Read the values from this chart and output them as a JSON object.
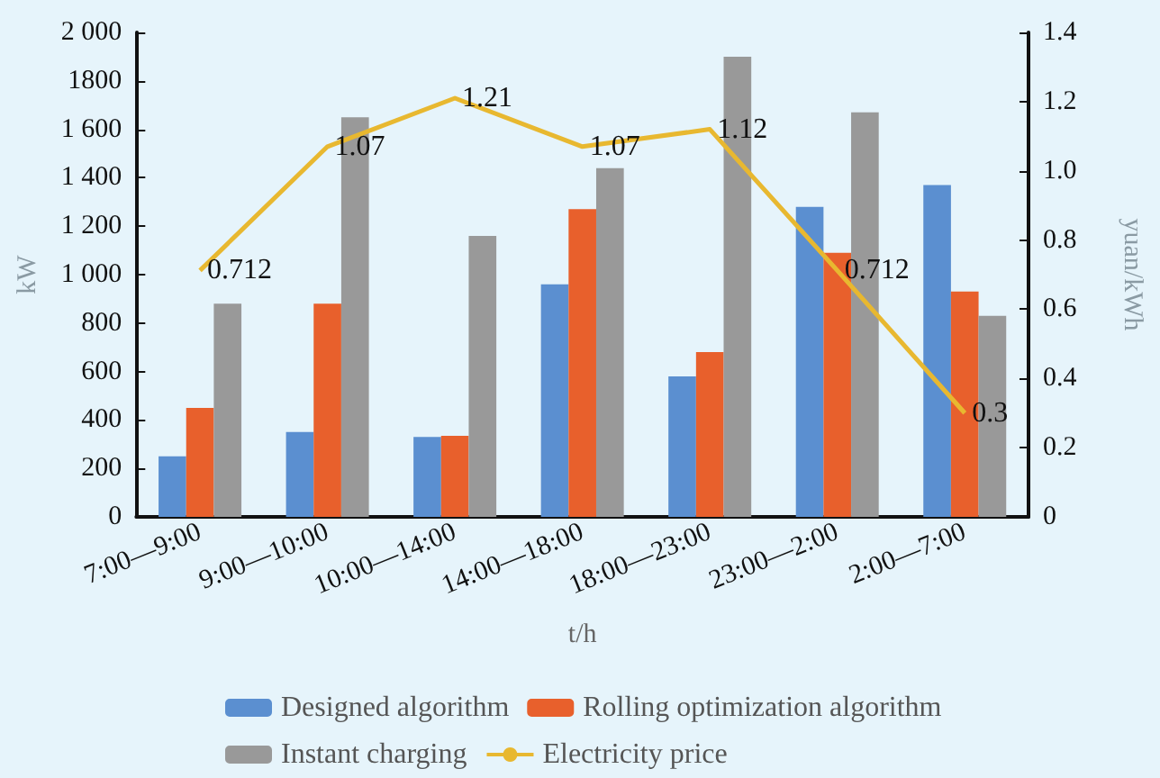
{
  "chart_data": {
    "type": "bar",
    "categories": [
      "7:00—9:00",
      "9:00—10:00",
      "10:00—14:00",
      "14:00—18:00",
      "18:00—23:00",
      "23:00—2:00",
      "2:00—7:00"
    ],
    "xlabel": "t/h",
    "ylabel": "kW",
    "y2label": "yuan/kWh",
    "series": [
      {
        "name": "Designed algorithm",
        "color": "#5b8fd0",
        "values": [
          250,
          350,
          330,
          960,
          580,
          1280,
          1370
        ]
      },
      {
        "name": "Rolling optimization algorithm",
        "color": "#e8602c",
        "values": [
          450,
          880,
          335,
          1270,
          680,
          1090,
          930
        ]
      },
      {
        "name": "Instant charging",
        "color": "#999999",
        "values": [
          880,
          1650,
          1160,
          1440,
          1900,
          1670,
          830
        ]
      },
      {
        "name": "Electricity price",
        "type": "line",
        "axis": "y2",
        "color": "#e8b830",
        "values": [
          0.712,
          1.07,
          1.21,
          1.07,
          1.12,
          0.712,
          0.3
        ],
        "data_labels": true
      }
    ],
    "ylim": [
      0,
      2000
    ],
    "yticks": [
      0,
      200,
      400,
      600,
      800,
      {
        "value": 1000,
        "label": "1 000"
      },
      {
        "value": 1200,
        "label": "1 200"
      },
      {
        "value": 1400,
        "label": "1 400"
      },
      {
        "value": 1600,
        "label": "1 600"
      },
      1800,
      {
        "value": 2000,
        "label": "2 000"
      }
    ],
    "y2lim": [
      0,
      1.4
    ],
    "y2ticks": [
      0,
      0.2,
      0.4,
      0.6,
      0.8,
      {
        "value": 1,
        "label": "1.0"
      },
      1.2,
      1.4
    ],
    "marker": "none",
    "grid": false,
    "legend": "bottom"
  }
}
